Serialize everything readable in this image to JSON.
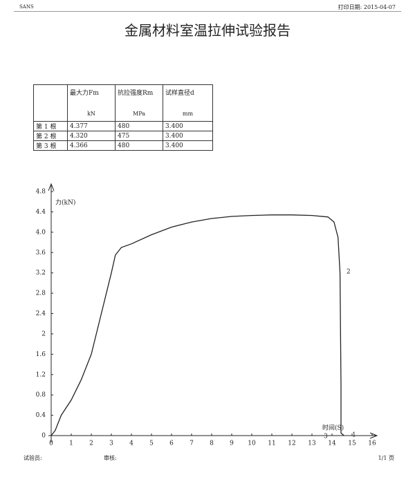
{
  "header": {
    "code": "SANS",
    "print_date": "打印日期: 2015-04-07",
    "title": "金属材料室温拉伸试验报告"
  },
  "table": {
    "columns": [
      "最大力Fm",
      "抗拉强度Rm",
      "试样直径d"
    ],
    "units": [
      "kN",
      "MPa",
      "mm"
    ],
    "rows": [
      [
        "第 1 根",
        "4.377",
        "480",
        "3.400"
      ],
      [
        "第 2 根",
        "4.320",
        "475",
        "3.400"
      ],
      [
        "第 3 根",
        "4.366",
        "480",
        "3.400"
      ]
    ]
  },
  "chart_data": {
    "type": "line",
    "y_label": "力(kN)",
    "x_label": "时间(S)",
    "annotations": [
      "2",
      "3",
      "1"
    ],
    "x": [
      0,
      0.2,
      0.5,
      1,
      1.5,
      2,
      2.5,
      3,
      3.2,
      3.5,
      4,
      5,
      6,
      7,
      8,
      9,
      10,
      11,
      12,
      13,
      13.8,
      14.1,
      14.3,
      14.4,
      14.45,
      14.45,
      14.6
    ],
    "series": [
      {
        "name": "2",
        "color": "#222222",
        "values": [
          0,
          0.1,
          0.4,
          0.7,
          1.1,
          1.6,
          2.4,
          3.2,
          3.55,
          3.7,
          3.77,
          3.95,
          4.1,
          4.2,
          4.27,
          4.31,
          4.33,
          4.34,
          4.34,
          4.33,
          4.3,
          4.2,
          3.9,
          3.2,
          1,
          0.05,
          0
        ]
      }
    ],
    "xlim": [
      0,
      16
    ],
    "ylim": [
      0,
      4.8
    ],
    "xticks": [
      0,
      1,
      2,
      3,
      4,
      5,
      6,
      7,
      8,
      9,
      10,
      11,
      12,
      13,
      14,
      15,
      16
    ],
    "yticks": [
      0,
      0.4,
      0.8,
      1.2,
      1.6,
      2,
      2.4,
      2.8,
      3.2,
      3.6,
      {
        "value": 4,
        "label": "4.0"
      },
      4.4,
      4.8
    ]
  },
  "footer": {
    "tester": "试验员:",
    "reviewer": "审核:",
    "page": "1/1 页"
  }
}
